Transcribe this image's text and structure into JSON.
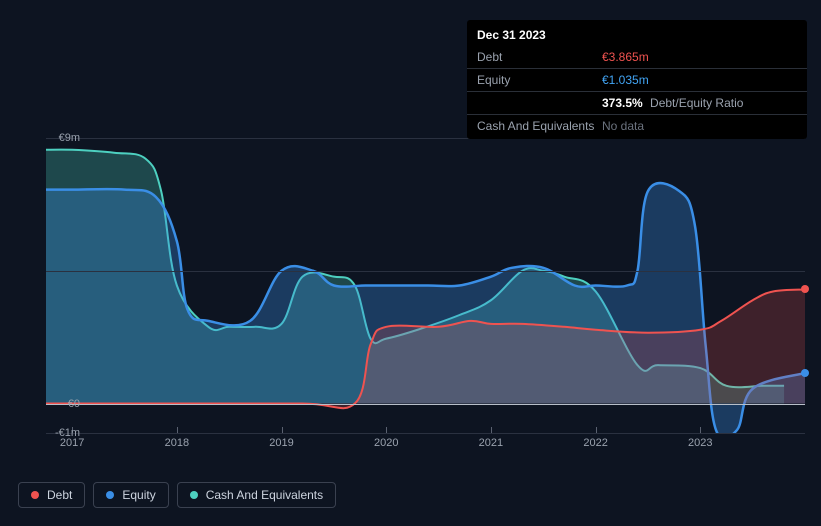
{
  "tooltip": {
    "date": "Dec 31 2023",
    "rows": [
      {
        "label": "Debt",
        "value": "€3.865m",
        "cls": "debt"
      },
      {
        "label": "Equity",
        "value": "€1.035m",
        "cls": "equity"
      }
    ],
    "ratio_pct": "373.5%",
    "ratio_label": "Debt/Equity Ratio",
    "cash_label": "Cash And Equivalents",
    "cash_value": "No data"
  },
  "chart": {
    "type": "area",
    "background_color": "#0d1421",
    "grid_color": "#2a3140",
    "zero_line_color": "#b8bfc9",
    "text_color": "#9aa2ae",
    "y_axis": {
      "min": -1,
      "max": 9,
      "ticks": [
        {
          "v": 9,
          "label": "€9m"
        },
        {
          "v": 4.5,
          "label": ""
        },
        {
          "v": 0,
          "label": "€0"
        },
        {
          "v": -1,
          "label": "-€1m"
        }
      ]
    },
    "x_axis": {
      "min": 2016.75,
      "max": 2024.0,
      "ticks": [
        {
          "v": 2017,
          "label": "2017"
        },
        {
          "v": 2018,
          "label": "2018"
        },
        {
          "v": 2019,
          "label": "2019"
        },
        {
          "v": 2020,
          "label": "2020"
        },
        {
          "v": 2021,
          "label": "2021"
        },
        {
          "v": 2022,
          "label": "2022"
        },
        {
          "v": 2023,
          "label": "2023"
        }
      ]
    },
    "series": {
      "cash": {
        "name": "Cash And Equivalents",
        "color": "#4dd0c0",
        "fill_opacity": 0.28,
        "line_width": 2,
        "data": [
          [
            2016.75,
            8.6
          ],
          [
            2017.0,
            8.6
          ],
          [
            2017.4,
            8.5
          ],
          [
            2017.7,
            8.3
          ],
          [
            2017.85,
            7.2
          ],
          [
            2018.0,
            4.0
          ],
          [
            2018.3,
            2.6
          ],
          [
            2018.5,
            2.6
          ],
          [
            2018.75,
            2.6
          ],
          [
            2019.0,
            2.7
          ],
          [
            2019.2,
            4.3
          ],
          [
            2019.5,
            4.3
          ],
          [
            2019.7,
            4.0
          ],
          [
            2019.85,
            2.2
          ],
          [
            2020.0,
            2.2
          ],
          [
            2020.3,
            2.5
          ],
          [
            2020.7,
            3.0
          ],
          [
            2021.0,
            3.5
          ],
          [
            2021.3,
            4.5
          ],
          [
            2021.5,
            4.5
          ],
          [
            2021.7,
            4.3
          ],
          [
            2022.0,
            3.8
          ],
          [
            2022.4,
            1.3
          ],
          [
            2022.6,
            1.3
          ],
          [
            2023.0,
            1.2
          ],
          [
            2023.25,
            0.6
          ],
          [
            2023.6,
            0.6
          ],
          [
            2023.8,
            0.6
          ]
        ]
      },
      "equity": {
        "name": "Equity",
        "color": "#3a8ee6",
        "fill_opacity": 0.32,
        "line_width": 2.5,
        "data": [
          [
            2016.75,
            7.25
          ],
          [
            2017.0,
            7.25
          ],
          [
            2017.5,
            7.25
          ],
          [
            2017.8,
            7.0
          ],
          [
            2018.0,
            5.5
          ],
          [
            2018.1,
            3.2
          ],
          [
            2018.3,
            2.8
          ],
          [
            2018.7,
            2.8
          ],
          [
            2019.0,
            4.5
          ],
          [
            2019.3,
            4.5
          ],
          [
            2019.5,
            4.0
          ],
          [
            2019.8,
            4.0
          ],
          [
            2020.0,
            4.0
          ],
          [
            2020.4,
            4.0
          ],
          [
            2020.7,
            4.0
          ],
          [
            2021.0,
            4.3
          ],
          [
            2021.2,
            4.6
          ],
          [
            2021.5,
            4.6
          ],
          [
            2021.8,
            4.0
          ],
          [
            2022.0,
            4.0
          ],
          [
            2022.3,
            4.0
          ],
          [
            2022.4,
            4.5
          ],
          [
            2022.5,
            7.2
          ],
          [
            2022.8,
            7.2
          ],
          [
            2022.95,
            6.0
          ],
          [
            2023.05,
            2.0
          ],
          [
            2023.15,
            -0.9
          ],
          [
            2023.35,
            -0.9
          ],
          [
            2023.5,
            0.5
          ],
          [
            2024.0,
            1.035
          ]
        ]
      },
      "debt": {
        "name": "Debt",
        "color": "#ef5350",
        "fill_opacity": 0.22,
        "line_width": 2,
        "data": [
          [
            2016.75,
            0
          ],
          [
            2017.7,
            0
          ],
          [
            2018.0,
            0
          ],
          [
            2019.2,
            0
          ],
          [
            2019.7,
            0.0
          ],
          [
            2019.85,
            2.0
          ],
          [
            2020.0,
            2.6
          ],
          [
            2020.5,
            2.6
          ],
          [
            2020.8,
            2.8
          ],
          [
            2021.0,
            2.7
          ],
          [
            2021.3,
            2.7
          ],
          [
            2021.7,
            2.6
          ],
          [
            2022.0,
            2.5
          ],
          [
            2022.5,
            2.4
          ],
          [
            2023.0,
            2.5
          ],
          [
            2023.2,
            2.8
          ],
          [
            2023.5,
            3.5
          ],
          [
            2023.7,
            3.8
          ],
          [
            2024.0,
            3.865
          ]
        ]
      }
    }
  },
  "legend": [
    {
      "label": "Debt",
      "color": "#ef5350",
      "key": "debt"
    },
    {
      "label": "Equity",
      "color": "#3a8ee6",
      "key": "equity"
    },
    {
      "label": "Cash And Equivalents",
      "color": "#4dd0c0",
      "key": "cash"
    }
  ]
}
